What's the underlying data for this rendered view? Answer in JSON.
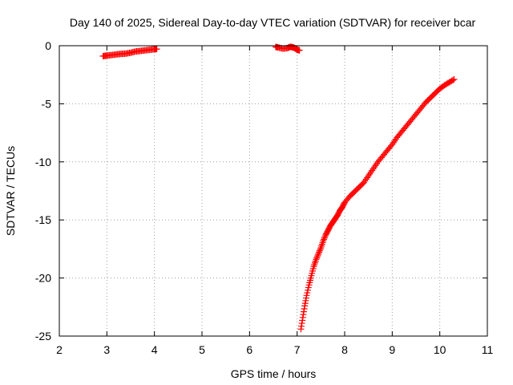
{
  "chart_data": {
    "type": "scatter",
    "title": "Day 140 of 2025, Sidereal Day-to-day VTEC variation (SDTVAR) for receiver bcar",
    "xlabel": "GPS time / hours",
    "ylabel": "SDTVAR / TECUs",
    "xlim": [
      2,
      11
    ],
    "ylim": [
      -25,
      0
    ],
    "x_ticks": [
      "2",
      "3",
      "4",
      "5",
      "6",
      "7",
      "8",
      "9",
      "10",
      "11"
    ],
    "y_ticks": [
      "0",
      "-5",
      "-10",
      "-15",
      "-20",
      "-25"
    ],
    "grid": true,
    "marker": "plus",
    "color": "#ff0000",
    "series": [
      {
        "points": [
          [
            2.92,
            -0.9
          ],
          [
            3.0,
            -0.85
          ],
          [
            3.1,
            -0.8
          ],
          [
            3.2,
            -0.75
          ],
          [
            3.3,
            -0.7
          ],
          [
            3.4,
            -0.68
          ],
          [
            3.5,
            -0.6
          ],
          [
            3.6,
            -0.5
          ],
          [
            3.7,
            -0.45
          ],
          [
            3.8,
            -0.4
          ],
          [
            3.9,
            -0.35
          ],
          [
            4.0,
            -0.3
          ],
          [
            4.05,
            -0.28
          ]
        ]
      },
      {
        "points": [
          [
            6.55,
            -0.1
          ],
          [
            6.6,
            -0.15
          ],
          [
            6.7,
            -0.25
          ],
          [
            6.8,
            -0.2
          ],
          [
            6.85,
            -0.1
          ],
          [
            6.9,
            -0.12
          ],
          [
            6.95,
            -0.2
          ],
          [
            7.0,
            -0.35
          ],
          [
            7.05,
            -0.4
          ]
        ]
      },
      {
        "points": [
          [
            7.08,
            -24.4
          ],
          [
            7.12,
            -23.4
          ],
          [
            7.16,
            -22.4
          ],
          [
            7.2,
            -21.5
          ],
          [
            7.25,
            -20.6
          ],
          [
            7.3,
            -19.8
          ],
          [
            7.35,
            -19.0
          ],
          [
            7.4,
            -18.4
          ],
          [
            7.45,
            -17.9
          ],
          [
            7.5,
            -17.4
          ],
          [
            7.55,
            -16.8
          ],
          [
            7.6,
            -16.3
          ],
          [
            7.65,
            -15.9
          ],
          [
            7.7,
            -15.5
          ],
          [
            7.75,
            -15.2
          ],
          [
            7.8,
            -14.9
          ],
          [
            7.85,
            -14.6
          ],
          [
            7.9,
            -14.2
          ],
          [
            7.95,
            -13.9
          ],
          [
            8.0,
            -13.5
          ],
          [
            8.1,
            -13.0
          ],
          [
            8.2,
            -12.6
          ],
          [
            8.3,
            -12.2
          ],
          [
            8.4,
            -11.8
          ],
          [
            8.5,
            -11.2
          ],
          [
            8.6,
            -10.6
          ],
          [
            8.7,
            -10.0
          ],
          [
            8.8,
            -9.5
          ],
          [
            8.9,
            -9.0
          ],
          [
            9.0,
            -8.5
          ],
          [
            9.1,
            -7.9
          ],
          [
            9.2,
            -7.4
          ],
          [
            9.3,
            -6.9
          ],
          [
            9.4,
            -6.4
          ],
          [
            9.5,
            -5.9
          ],
          [
            9.6,
            -5.4
          ],
          [
            9.7,
            -4.9
          ],
          [
            9.8,
            -4.5
          ],
          [
            9.9,
            -4.1
          ],
          [
            10.0,
            -3.7
          ],
          [
            10.1,
            -3.4
          ],
          [
            10.2,
            -3.15
          ],
          [
            10.3,
            -2.9
          ]
        ]
      }
    ]
  }
}
